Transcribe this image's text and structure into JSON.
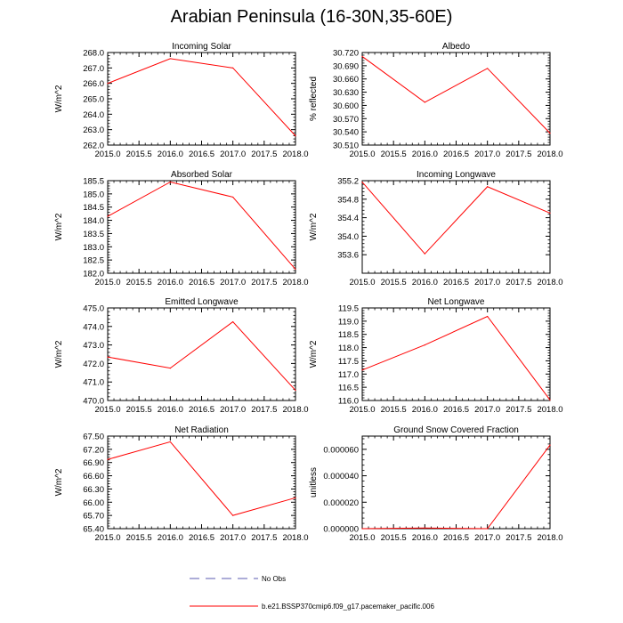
{
  "page": {
    "title": "Arabian Peninsula (16-30N,35-60E)"
  },
  "legend": [
    {
      "label": "No Obs",
      "color": "#5b5bb0",
      "dash": true
    },
    {
      "label": "b.e21.BSSP370cmip6.f09_g17.pacemaker_pacific.006",
      "color": "#ff0000",
      "dash": false
    }
  ],
  "chart_data": [
    {
      "type": "line",
      "title": "Incoming Solar",
      "ylabel": "W/m^2",
      "x": [
        2015,
        2016,
        2017,
        2018
      ],
      "xlim": [
        2015,
        2018
      ],
      "xticks": [
        "2015.0",
        "2015.5",
        "2016.0",
        "2016.5",
        "2017.0",
        "2017.5",
        "2018.0"
      ],
      "ylim": [
        262,
        268
      ],
      "yticks": [
        "262.0",
        "263.0",
        "264.0",
        "265.0",
        "266.0",
        "267.0",
        "268.0"
      ],
      "series": [
        {
          "name": "b.e21.BSSP370cmip6.f09_g17.pacemaker_pacific.006",
          "color": "#ff0000",
          "values": [
            266.0,
            267.6,
            267.0,
            262.6
          ]
        }
      ]
    },
    {
      "type": "line",
      "title": "Albedo",
      "ylabel": "% reflected",
      "x": [
        2015,
        2016,
        2017,
        2018
      ],
      "xlim": [
        2015,
        2018
      ],
      "xticks": [
        "2015.0",
        "2015.5",
        "2016.0",
        "2016.5",
        "2017.0",
        "2017.5",
        "2018.0"
      ],
      "ylim": [
        30.51,
        30.72
      ],
      "yticks": [
        "30.510",
        "30.540",
        "30.570",
        "30.600",
        "30.630",
        "30.660",
        "30.690",
        "30.720"
      ],
      "series": [
        {
          "name": "b.e21.BSSP370cmip6.f09_g17.pacemaker_pacific.006",
          "color": "#ff0000",
          "values": [
            30.711,
            30.607,
            30.684,
            30.537
          ]
        }
      ]
    },
    {
      "type": "line",
      "title": "Absorbed Solar",
      "ylabel": "W/m^2",
      "x": [
        2015,
        2016,
        2017,
        2018
      ],
      "xlim": [
        2015,
        2018
      ],
      "xticks": [
        "2015.0",
        "2015.5",
        "2016.0",
        "2016.5",
        "2017.0",
        "2017.5",
        "2018.0"
      ],
      "ylim": [
        182,
        185.5
      ],
      "yticks": [
        "182.0",
        "182.5",
        "183.0",
        "183.5",
        "184.0",
        "184.5",
        "185.0",
        "185.5"
      ],
      "series": [
        {
          "name": "b.e21.BSSP370cmip6.f09_g17.pacemaker_pacific.006",
          "color": "#ff0000",
          "values": [
            184.15,
            185.45,
            184.88,
            182.15
          ]
        }
      ]
    },
    {
      "type": "line",
      "title": "Incoming Longwave",
      "ylabel": "W/m^2",
      "x": [
        2015,
        2016,
        2017,
        2018
      ],
      "xlim": [
        2015,
        2018
      ],
      "xticks": [
        "2015.0",
        "2015.5",
        "2016.0",
        "2016.5",
        "2017.0",
        "2017.5",
        "2018.0"
      ],
      "ylim": [
        353.2,
        355.2
      ],
      "yticks": [
        "353.6",
        "354.0",
        "354.4",
        "354.8",
        "355.2"
      ],
      "series": [
        {
          "name": "b.e21.BSSP370cmip6.f09_g17.pacemaker_pacific.006",
          "color": "#ff0000",
          "values": [
            355.17,
            353.62,
            355.07,
            354.5
          ]
        }
      ]
    },
    {
      "type": "line",
      "title": "Emitted Longwave",
      "ylabel": "W/m^2",
      "x": [
        2015,
        2016,
        2017,
        2018
      ],
      "xlim": [
        2015,
        2018
      ],
      "xticks": [
        "2015.0",
        "2015.5",
        "2016.0",
        "2016.5",
        "2017.0",
        "2017.5",
        "2018.0"
      ],
      "ylim": [
        470,
        475
      ],
      "yticks": [
        "470.0",
        "471.0",
        "472.0",
        "473.0",
        "474.0",
        "475.0"
      ],
      "series": [
        {
          "name": "b.e21.BSSP370cmip6.f09_g17.pacemaker_pacific.006",
          "color": "#ff0000",
          "values": [
            472.35,
            471.75,
            474.25,
            470.55
          ]
        }
      ]
    },
    {
      "type": "line",
      "title": "Net Longwave",
      "ylabel": "W/m^2",
      "x": [
        2015,
        2016,
        2017,
        2018
      ],
      "xlim": [
        2015,
        2018
      ],
      "xticks": [
        "2015.0",
        "2015.5",
        "2016.0",
        "2016.5",
        "2017.0",
        "2017.5",
        "2018.0"
      ],
      "ylim": [
        116,
        119.5
      ],
      "yticks": [
        "116.0",
        "116.5",
        "117.0",
        "117.5",
        "118.0",
        "118.5",
        "119.0",
        "119.5"
      ],
      "series": [
        {
          "name": "b.e21.BSSP370cmip6.f09_g17.pacemaker_pacific.006",
          "color": "#ff0000",
          "values": [
            117.15,
            118.1,
            119.18,
            116.02
          ]
        }
      ]
    },
    {
      "type": "line",
      "title": "Net Radiation",
      "ylabel": "W/m^2",
      "x": [
        2015,
        2016,
        2017,
        2018
      ],
      "xlim": [
        2015,
        2018
      ],
      "xticks": [
        "2015.0",
        "2015.5",
        "2016.0",
        "2016.5",
        "2017.0",
        "2017.5",
        "2018.0"
      ],
      "ylim": [
        65.4,
        67.5
      ],
      "yticks": [
        "65.40",
        "65.70",
        "66.00",
        "66.30",
        "66.60",
        "66.90",
        "67.20",
        "67.50"
      ],
      "series": [
        {
          "name": "b.e21.BSSP370cmip6.f09_g17.pacemaker_pacific.006",
          "color": "#ff0000",
          "values": [
            66.97,
            67.37,
            65.7,
            66.1
          ]
        }
      ]
    },
    {
      "type": "line",
      "title": "Ground Snow Covered Fraction",
      "ylabel": "unitless",
      "x": [
        2015,
        2016,
        2017,
        2018
      ],
      "xlim": [
        2015,
        2018
      ],
      "xticks": [
        "2015.0",
        "2015.5",
        "2016.0",
        "2016.5",
        "2017.0",
        "2017.5",
        "2018.0"
      ],
      "ylim": [
        0,
        7e-05
      ],
      "yticks": [
        "0.000000",
        "0.000020",
        "0.000040",
        "0.000060"
      ],
      "yticks_values": [
        0,
        2e-05,
        4e-05,
        6e-05
      ],
      "series": [
        {
          "name": "b.e21.BSSP370cmip6.f09_g17.pacemaker_pacific.006",
          "color": "#ff0000",
          "values": [
            0.0,
            5e-07,
            0.0,
            6.32e-05
          ]
        }
      ]
    }
  ]
}
